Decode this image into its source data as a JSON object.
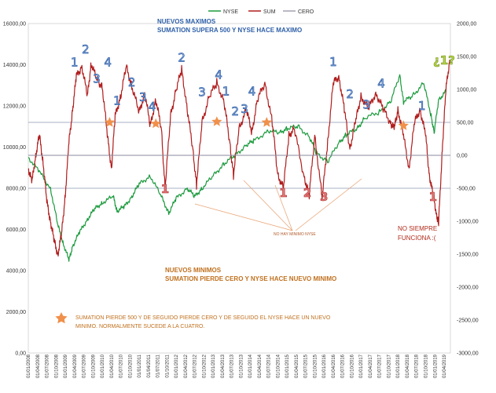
{
  "chart_data": {
    "type": "line",
    "legend": {
      "placement": "top-center",
      "entries": [
        "NYSE",
        "SUM",
        "CERO"
      ]
    },
    "left_axis": {
      "ylim": [
        0,
        16000
      ],
      "ticks": [
        "0,00",
        "2000,00",
        "4000,00",
        "6000,00",
        "8000,00",
        "10000,00",
        "12000,00",
        "14000,00",
        "16000,00"
      ]
    },
    "right_axis": {
      "ylim": [
        -3000,
        2000
      ],
      "ticks": [
        "-3000,00",
        "-2500,00",
        "-2000,00",
        "-1500,00",
        "-1000,00",
        "-500,00",
        "0,00",
        "500,00",
        "1000,00",
        "1500,00",
        "2000,00"
      ]
    },
    "x_ticks": [
      "01/01/2008",
      "01/04/2008",
      "01/07/2008",
      "01/10/2008",
      "01/01/2009",
      "01/04/2009",
      "01/07/2009",
      "01/10/2009",
      "01/01/2010",
      "01/04/2010",
      "01/07/2010",
      "01/10/2010",
      "01/01/2011",
      "01/04/2011",
      "01/07/2011",
      "01/10/2011",
      "01/01/2012",
      "01/04/2012",
      "01/07/2012",
      "01/10/2012",
      "01/01/2013",
      "01/04/2013",
      "01/07/2013",
      "01/10/2013",
      "01/01/2014",
      "01/04/2014",
      "01/07/2014",
      "01/10/2014",
      "01/01/2015",
      "01/04/2015",
      "01/07/2015",
      "01/10/2015",
      "01/01/2016",
      "01/04/2016",
      "01/07/2016",
      "01/10/2016",
      "01/01/2017",
      "01/04/2017",
      "01/07/2017",
      "01/10/2017",
      "01/01/2018",
      "01/04/2018",
      "01/07/2018",
      "01/10/2018",
      "01/01/2019",
      "01/04/2019"
    ],
    "reference_lines_right": [
      500,
      0,
      -500
    ],
    "series": [
      {
        "name": "NYSE",
        "axis": "left",
        "color": "#1a9a3c",
        "points": [
          [
            2008.0,
            9500
          ],
          [
            2008.3,
            8800
          ],
          [
            2008.6,
            8000
          ],
          [
            2008.8,
            6200
          ],
          [
            2008.95,
            5300
          ],
          [
            2009.1,
            4500
          ],
          [
            2009.2,
            5200
          ],
          [
            2009.4,
            5900
          ],
          [
            2009.6,
            6500
          ],
          [
            2009.8,
            7000
          ],
          [
            2010.0,
            7300
          ],
          [
            2010.3,
            7600
          ],
          [
            2010.4,
            6900
          ],
          [
            2010.6,
            7100
          ],
          [
            2010.8,
            7600
          ],
          [
            2011.0,
            8200
          ],
          [
            2011.3,
            8600
          ],
          [
            2011.6,
            7600
          ],
          [
            2011.8,
            6800
          ],
          [
            2012.0,
            7500
          ],
          [
            2012.3,
            8000
          ],
          [
            2012.5,
            7600
          ],
          [
            2012.7,
            8000
          ],
          [
            2013.0,
            8600
          ],
          [
            2013.3,
            9200
          ],
          [
            2013.6,
            9600
          ],
          [
            2013.9,
            10100
          ],
          [
            2014.1,
            10300
          ],
          [
            2014.5,
            10800
          ],
          [
            2014.8,
            10700
          ],
          [
            2015.0,
            10900
          ],
          [
            2015.3,
            11000
          ],
          [
            2015.6,
            10500
          ],
          [
            2015.8,
            9700
          ],
          [
            2016.1,
            9300
          ],
          [
            2016.4,
            10200
          ],
          [
            2016.6,
            10600
          ],
          [
            2016.9,
            10900
          ],
          [
            2017.1,
            11400
          ],
          [
            2017.5,
            11700
          ],
          [
            2017.8,
            12200
          ],
          [
            2018.05,
            13500
          ],
          [
            2018.15,
            12200
          ],
          [
            2018.4,
            12500
          ],
          [
            2018.7,
            13100
          ],
          [
            2018.9,
            11500
          ],
          [
            2018.98,
            10700
          ],
          [
            2019.1,
            12300
          ],
          [
            2019.3,
            12700
          ]
        ]
      },
      {
        "name": "SUM",
        "axis": "right",
        "color": "#b01c1c",
        "points": [
          [
            2008.0,
            -200
          ],
          [
            2008.1,
            -400
          ],
          [
            2008.2,
            0
          ],
          [
            2008.3,
            300
          ],
          [
            2008.4,
            -100
          ],
          [
            2008.5,
            -700
          ],
          [
            2008.6,
            -1000
          ],
          [
            2008.7,
            -1300
          ],
          [
            2008.8,
            -1500
          ],
          [
            2008.9,
            -1200
          ],
          [
            2009.0,
            -600
          ],
          [
            2009.1,
            200
          ],
          [
            2009.2,
            700
          ],
          [
            2009.3,
            1200
          ],
          [
            2009.45,
            1350
          ],
          [
            2009.6,
            900
          ],
          [
            2009.7,
            1400
          ],
          [
            2009.85,
            1150
          ],
          [
            2010.0,
            1050
          ],
          [
            2010.15,
            250
          ],
          [
            2010.25,
            -200
          ],
          [
            2010.35,
            600
          ],
          [
            2010.5,
            900
          ],
          [
            2010.65,
            1350
          ],
          [
            2010.8,
            1050
          ],
          [
            2011.0,
            650
          ],
          [
            2011.15,
            950
          ],
          [
            2011.3,
            450
          ],
          [
            2011.45,
            850
          ],
          [
            2011.6,
            400
          ],
          [
            2011.7,
            -500
          ],
          [
            2011.85,
            600
          ],
          [
            2012.0,
            1000
          ],
          [
            2012.15,
            1300
          ],
          [
            2012.3,
            700
          ],
          [
            2012.45,
            100
          ],
          [
            2012.55,
            -450
          ],
          [
            2012.7,
            500
          ],
          [
            2012.9,
            900
          ],
          [
            2013.1,
            1100
          ],
          [
            2013.3,
            800
          ],
          [
            2013.45,
            200
          ],
          [
            2013.55,
            -300
          ],
          [
            2013.7,
            400
          ],
          [
            2013.9,
            700
          ],
          [
            2014.05,
            350
          ],
          [
            2014.2,
            850
          ],
          [
            2014.4,
            1100
          ],
          [
            2014.6,
            500
          ],
          [
            2014.75,
            -300
          ],
          [
            2014.9,
            -500
          ],
          [
            2015.05,
            300
          ],
          [
            2015.2,
            400
          ],
          [
            2015.45,
            -300
          ],
          [
            2015.6,
            -600
          ],
          [
            2015.75,
            300
          ],
          [
            2015.95,
            -650
          ],
          [
            2016.1,
            200
          ],
          [
            2016.25,
            1100
          ],
          [
            2016.4,
            1200
          ],
          [
            2016.55,
            700
          ],
          [
            2016.7,
            100
          ],
          [
            2016.85,
            500
          ],
          [
            2017.0,
            900
          ],
          [
            2017.2,
            700
          ],
          [
            2017.4,
            950
          ],
          [
            2017.6,
            700
          ],
          [
            2017.8,
            500
          ],
          [
            2017.9,
            400
          ],
          [
            2018.0,
            700
          ],
          [
            2018.15,
            300
          ],
          [
            2018.3,
            -200
          ],
          [
            2018.45,
            500
          ],
          [
            2018.6,
            700
          ],
          [
            2018.75,
            300
          ],
          [
            2018.85,
            -300
          ],
          [
            2018.95,
            -600
          ],
          [
            2019.05,
            -900
          ],
          [
            2019.1,
            -1050
          ],
          [
            2019.2,
            100
          ],
          [
            2019.3,
            1000
          ],
          [
            2019.4,
            1450
          ]
        ]
      },
      {
        "name": "CERO",
        "axis": "right",
        "color": "#8a8aa0",
        "points": [
          [
            2008.0,
            0
          ],
          [
            2019.42,
            0
          ]
        ]
      }
    ]
  },
  "annotations": {
    "max_title": "NUEVOS MAXIMOS",
    "max_subtitle": "SUMATION SUPERA 500 Y NYSE HACE MAXIMO",
    "min_title": "NUEVOS MINIMOS",
    "min_subtitle": "SUMATION PIERDE CERO Y NYSE HACE NUEVO MINIMO",
    "no_min": "NO HAY MINIMO NYSE",
    "no_siempre_1": "NO SIEMPRE",
    "no_siempre_2": "FUNCIONA   :(",
    "star_text_1": "SUMATION PIERDE 500 Y DE SEGUIDO PIERDE CERO Y DE SEGUIDO EL NYSE HACE UN NUEVO",
    "star_text_2": "MINIMO. NORMALMENTE SUCEDE A LA CUATRO.",
    "question": "¿1?",
    "blue_numbers": [
      {
        "text": "1",
        "x": 2009.25,
        "v": 1350
      },
      {
        "text": "2",
        "x": 2009.55,
        "v": 1550
      },
      {
        "text": "3",
        "x": 2009.85,
        "v": 1100
      },
      {
        "text": "4",
        "x": 2010.15,
        "v": 1350
      },
      {
        "text": "1",
        "x": 2010.4,
        "v": 770
      },
      {
        "text": "2",
        "x": 2010.8,
        "v": 1050
      },
      {
        "text": "3",
        "x": 2011.1,
        "v": 820
      },
      {
        "text": "4",
        "x": 2011.35,
        "v": 680
      },
      {
        "text": "2",
        "x": 2012.15,
        "v": 1420
      },
      {
        "text": "3",
        "x": 2012.7,
        "v": 900
      },
      {
        "text": "4",
        "x": 2013.15,
        "v": 1160
      },
      {
        "text": "1",
        "x": 2013.35,
        "v": 910
      },
      {
        "text": "2",
        "x": 2013.6,
        "v": 610
      },
      {
        "text": "3",
        "x": 2013.85,
        "v": 640
      },
      {
        "text": "4",
        "x": 2014.05,
        "v": 910
      },
      {
        "text": "1",
        "x": 2016.25,
        "v": 1360
      },
      {
        "text": "2",
        "x": 2016.7,
        "v": 870
      },
      {
        "text": "3",
        "x": 2017.15,
        "v": 710
      },
      {
        "text": "4",
        "x": 2017.55,
        "v": 1030
      },
      {
        "text": "1",
        "x": 2018.65,
        "v": 690
      }
    ],
    "red_numbers": [
      {
        "text": "1",
        "x": 2011.7,
        "v": -570
      },
      {
        "text": "1",
        "x": 2014.9,
        "v": -630
      },
      {
        "text": "2",
        "x": 2015.55,
        "v": -630
      },
      {
        "text": "3",
        "x": 2016.0,
        "v": -690
      },
      {
        "text": "1",
        "x": 2018.95,
        "v": -690
      }
    ],
    "stars": [
      {
        "x": 2010.2,
        "v": 500
      },
      {
        "x": 2011.45,
        "v": 480
      },
      {
        "x": 2013.1,
        "v": 510
      },
      {
        "x": 2014.45,
        "v": 500
      },
      {
        "x": 2018.15,
        "v": 450
      }
    ]
  }
}
